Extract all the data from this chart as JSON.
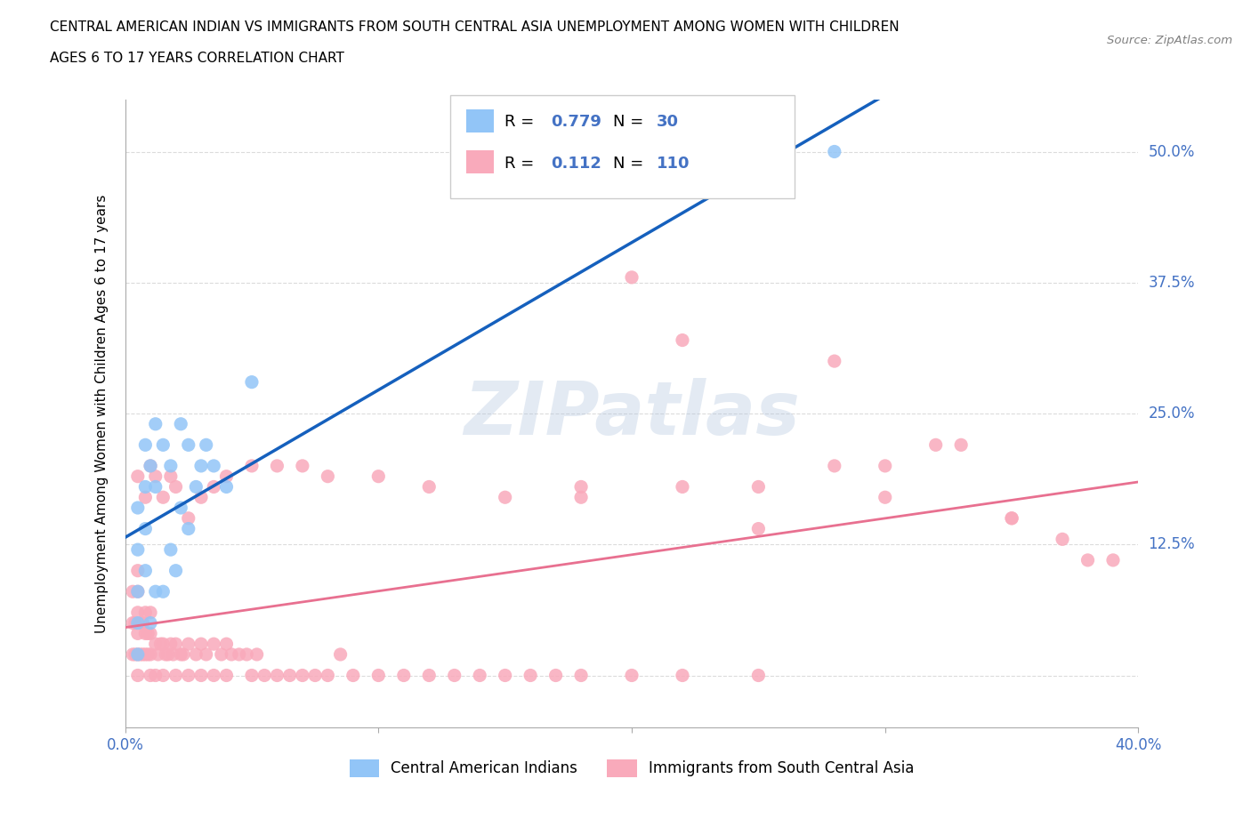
{
  "title_line1": "CENTRAL AMERICAN INDIAN VS IMMIGRANTS FROM SOUTH CENTRAL ASIA UNEMPLOYMENT AMONG WOMEN WITH CHILDREN",
  "title_line2": "AGES 6 TO 17 YEARS CORRELATION CHART",
  "source": "Source: ZipAtlas.com",
  "ylabel": "Unemployment Among Women with Children Ages 6 to 17 years",
  "watermark": "ZIPatlas",
  "blue_R": 0.779,
  "blue_N": 30,
  "pink_R": 0.112,
  "pink_N": 110,
  "blue_color": "#92C5F7",
  "pink_color": "#F9AABB",
  "blue_line_color": "#1560BD",
  "pink_line_color": "#E87090",
  "legend_text_color": "#4472C4",
  "xlim": [
    0.0,
    0.4
  ],
  "ylim": [
    -0.05,
    0.55
  ],
  "yticks": [
    0.0,
    0.125,
    0.25,
    0.375,
    0.5
  ],
  "ytick_labels": [
    "",
    "12.5%",
    "25.0%",
    "37.5%",
    "50.0%"
  ],
  "xticks": [
    0.0,
    0.1,
    0.2,
    0.3,
    0.4
  ],
  "xtick_labels": [
    "0.0%",
    "",
    "",
    "",
    "40.0%"
  ],
  "blue_x": [
    0.005,
    0.005,
    0.005,
    0.005,
    0.005,
    0.008,
    0.008,
    0.008,
    0.008,
    0.01,
    0.01,
    0.012,
    0.012,
    0.012,
    0.015,
    0.015,
    0.018,
    0.018,
    0.02,
    0.022,
    0.022,
    0.025,
    0.025,
    0.028,
    0.03,
    0.032,
    0.035,
    0.04,
    0.05,
    0.28
  ],
  "blue_y": [
    0.02,
    0.05,
    0.08,
    0.12,
    0.16,
    0.1,
    0.14,
    0.18,
    0.22,
    0.05,
    0.2,
    0.08,
    0.18,
    0.24,
    0.08,
    0.22,
    0.12,
    0.2,
    0.1,
    0.16,
    0.24,
    0.14,
    0.22,
    0.18,
    0.2,
    0.22,
    0.2,
    0.18,
    0.28,
    0.5
  ],
  "pink_x": [
    0.003,
    0.003,
    0.003,
    0.004,
    0.004,
    0.005,
    0.005,
    0.005,
    0.005,
    0.005,
    0.005,
    0.006,
    0.006,
    0.007,
    0.007,
    0.008,
    0.008,
    0.008,
    0.009,
    0.009,
    0.01,
    0.01,
    0.01,
    0.01,
    0.012,
    0.012,
    0.013,
    0.014,
    0.015,
    0.015,
    0.016,
    0.017,
    0.018,
    0.019,
    0.02,
    0.02,
    0.022,
    0.023,
    0.025,
    0.025,
    0.028,
    0.03,
    0.03,
    0.032,
    0.035,
    0.035,
    0.038,
    0.04,
    0.04,
    0.042,
    0.045,
    0.048,
    0.05,
    0.052,
    0.055,
    0.06,
    0.065,
    0.07,
    0.075,
    0.08,
    0.085,
    0.09,
    0.1,
    0.11,
    0.12,
    0.13,
    0.14,
    0.15,
    0.16,
    0.17,
    0.18,
    0.2,
    0.22,
    0.25,
    0.28,
    0.3,
    0.32,
    0.35,
    0.38,
    0.39,
    0.005,
    0.008,
    0.01,
    0.012,
    0.015,
    0.018,
    0.02,
    0.025,
    0.03,
    0.035,
    0.04,
    0.05,
    0.06,
    0.07,
    0.08,
    0.1,
    0.12,
    0.15,
    0.18,
    0.22,
    0.25,
    0.3,
    0.35,
    0.22,
    0.28,
    0.33,
    0.18,
    0.2,
    0.25,
    0.37
  ],
  "pink_y": [
    0.02,
    0.05,
    0.08,
    0.02,
    0.05,
    0.0,
    0.02,
    0.04,
    0.06,
    0.08,
    0.1,
    0.02,
    0.05,
    0.02,
    0.05,
    0.02,
    0.04,
    0.06,
    0.02,
    0.04,
    0.0,
    0.02,
    0.04,
    0.06,
    0.0,
    0.03,
    0.02,
    0.03,
    0.0,
    0.03,
    0.02,
    0.02,
    0.03,
    0.02,
    0.0,
    0.03,
    0.02,
    0.02,
    0.0,
    0.03,
    0.02,
    0.0,
    0.03,
    0.02,
    0.0,
    0.03,
    0.02,
    0.0,
    0.03,
    0.02,
    0.02,
    0.02,
    0.0,
    0.02,
    0.0,
    0.0,
    0.0,
    0.0,
    0.0,
    0.0,
    0.02,
    0.0,
    0.0,
    0.0,
    0.0,
    0.0,
    0.0,
    0.0,
    0.0,
    0.0,
    0.0,
    0.0,
    0.0,
    0.0,
    0.2,
    0.2,
    0.22,
    0.15,
    0.11,
    0.11,
    0.19,
    0.17,
    0.2,
    0.19,
    0.17,
    0.19,
    0.18,
    0.15,
    0.17,
    0.18,
    0.19,
    0.2,
    0.2,
    0.2,
    0.19,
    0.19,
    0.18,
    0.17,
    0.17,
    0.18,
    0.18,
    0.17,
    0.15,
    0.32,
    0.3,
    0.22,
    0.18,
    0.38,
    0.14,
    0.13
  ]
}
